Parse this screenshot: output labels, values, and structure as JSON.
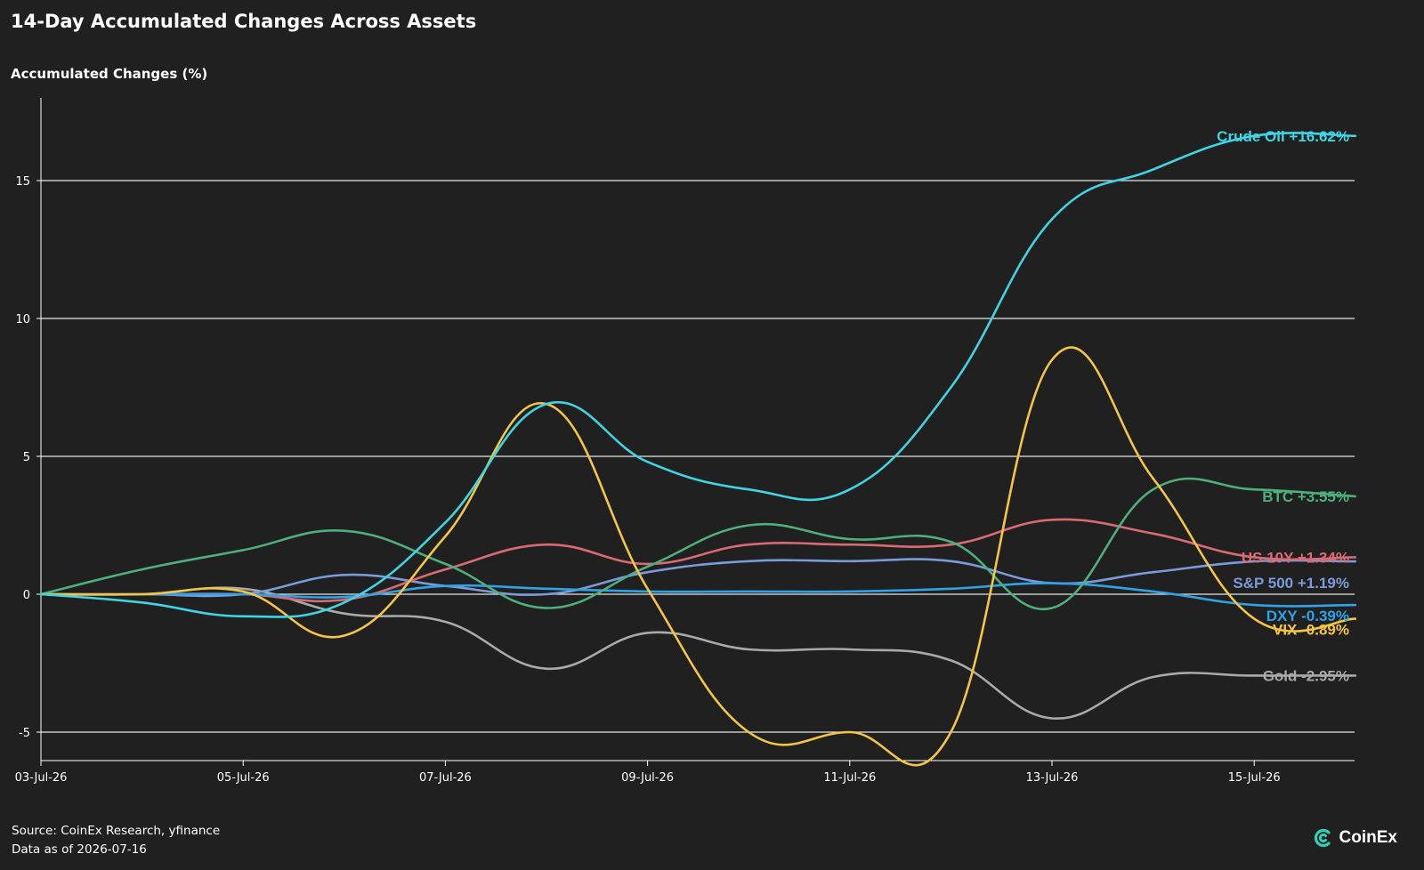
{
  "chart_data": {
    "type": "line",
    "title": "14-Day Accumulated Changes Across Assets",
    "ylabel": "Accumulated Changes (%)",
    "xlabel": "",
    "x": [
      "03-Jul-26",
      "04-Jul-26",
      "05-Jul-26",
      "06-Jul-26",
      "07-Jul-26",
      "08-Jul-26",
      "09-Jul-26",
      "10-Jul-26",
      "11-Jul-26",
      "12-Jul-26",
      "13-Jul-26",
      "14-Jul-26",
      "15-Jul-26",
      "16-Jul-26"
    ],
    "x_ticks": [
      "03-Jul-26",
      "05-Jul-26",
      "07-Jul-26",
      "09-Jul-26",
      "11-Jul-26",
      "13-Jul-26",
      "15-Jul-26"
    ],
    "y_ticks": [
      15,
      10,
      5,
      0,
      -5
    ],
    "ylim": [
      -6,
      18
    ],
    "grid": "horizontal",
    "series": [
      {
        "name": "Crude Oil",
        "label": "Crude Oil +16.62%",
        "color": "#3fd4e2",
        "values": [
          0,
          -0.3,
          -0.8,
          -0.3,
          2.6,
          6.9,
          4.8,
          3.8,
          3.8,
          7.5,
          13.6,
          15.4,
          16.62,
          16.62
        ]
      },
      {
        "name": "BTC",
        "label": "BTC +3.55%",
        "color": "#4caf7d",
        "values": [
          0,
          0.9,
          1.6,
          2.3,
          1.1,
          -0.5,
          1.0,
          2.5,
          2.0,
          1.9,
          -0.5,
          3.8,
          3.8,
          3.55
        ]
      },
      {
        "name": "US 10Y",
        "label": "US 10Y +1.34%",
        "color": "#d96a74",
        "values": [
          0,
          0,
          0,
          -0.2,
          0.9,
          1.8,
          1.1,
          1.8,
          1.8,
          1.8,
          2.7,
          2.2,
          1.34,
          1.34
        ]
      },
      {
        "name": "S&P 500",
        "label": "S&P 500 +1.19%",
        "color": "#7a9ad8",
        "values": [
          0,
          0,
          0,
          0.7,
          0.3,
          0,
          0.8,
          1.2,
          1.2,
          1.2,
          0.4,
          0.8,
          1.19,
          1.19
        ]
      },
      {
        "name": "DXY",
        "label": "DXY -0.39%",
        "color": "#2ea3e8",
        "values": [
          0,
          0,
          0,
          -0.1,
          0.3,
          0.2,
          0.1,
          0.1,
          0.1,
          0.2,
          0.4,
          0.1,
          -0.39,
          -0.39
        ]
      },
      {
        "name": "VIX",
        "label": "VIX -0.89%",
        "color": "#f4c542",
        "values": [
          0,
          0,
          0.1,
          -1.5,
          2.1,
          6.9,
          0.2,
          -5.0,
          -5.0,
          -5.0,
          8.5,
          4.2,
          -0.89,
          -0.89
        ]
      },
      {
        "name": "Gold",
        "label": "Gold -2.95%",
        "color": "#a9a9a9",
        "values": [
          0,
          0,
          0.2,
          -0.7,
          -1.0,
          -2.7,
          -1.4,
          -2.0,
          -2.0,
          -2.4,
          -4.5,
          -3.0,
          -2.95,
          -2.95
        ]
      }
    ]
  },
  "footer": {
    "source": "Source: CoinEx Research, yfinance",
    "asof": "Data as of 2026-07-16"
  },
  "brand": {
    "name": "CoinEx",
    "icon": "coinex-logo-icon",
    "color": "#2ed3b7"
  }
}
